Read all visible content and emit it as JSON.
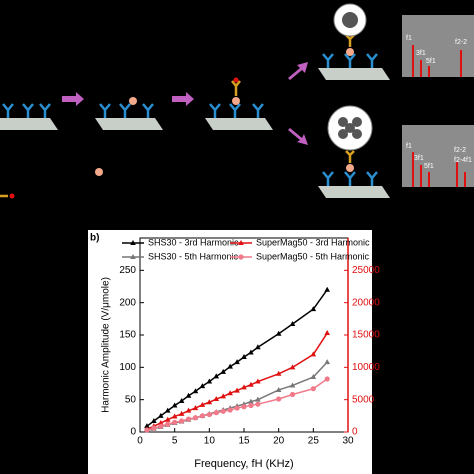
{
  "schematic": {
    "spectra": [
      {
        "labels": [
          "f1",
          "3f1",
          "5f1",
          "f2-2"
        ]
      },
      {
        "labels": [
          "f1",
          "3f1",
          "5f1",
          "f2-2",
          "f2-4f1"
        ]
      }
    ]
  },
  "chart_data": {
    "type": "line",
    "panel_label": "b)",
    "x_label": "Frequency, fH (KHz)",
    "y_label": "Harmonic Amplitude (V/μmole)",
    "x": [
      1,
      2,
      3,
      4,
      5,
      6,
      7,
      8,
      9,
      10,
      11,
      12,
      13,
      14,
      15,
      16,
      17,
      20,
      22,
      25,
      27
    ],
    "series": [
      {
        "name": "SHS30 - 3rd Harmonic",
        "color": "#000000",
        "marker": "triangle",
        "axis": "y",
        "values": [
          9,
          17,
          25,
          33,
          41,
          48,
          56,
          63,
          71,
          78,
          86,
          93,
          101,
          108,
          116,
          123,
          131,
          152,
          167,
          190,
          220
        ]
      },
      {
        "name": "SuperMag50 - 3rd Harmonic",
        "color": "#e01010",
        "marker": "triangle",
        "axis": "y2",
        "values": [
          400,
          900,
          1400,
          1900,
          2400,
          2800,
          3300,
          3700,
          4200,
          4600,
          5100,
          5500,
          6000,
          6400,
          6900,
          7300,
          7800,
          9000,
          10000,
          12000,
          15300
        ]
      },
      {
        "name": "SHS30 - 5th Harmonic",
        "color": "#777777",
        "marker": "triangle",
        "axis": "y",
        "values": [
          2,
          5,
          8,
          11,
          14,
          16,
          19,
          22,
          25,
          28,
          31,
          34,
          37,
          40,
          43,
          47,
          50,
          65,
          72,
          85,
          108
        ]
      },
      {
        "name": "SuperMag50 - 5th Harmonic",
        "color": "#f07a8a",
        "marker": "circle",
        "axis": "y2",
        "values": [
          300,
          600,
          900,
          1200,
          1500,
          1700,
          2000,
          2200,
          2500,
          2700,
          3000,
          3200,
          3400,
          3700,
          3900,
          4100,
          4300,
          5100,
          5800,
          6700,
          8200
        ]
      }
    ],
    "xlim": [
      0,
      30
    ],
    "xticks": [
      0,
      5,
      10,
      15,
      20,
      25,
      30
    ],
    "ylim": [
      0,
      300
    ],
    "yticks": [
      0,
      50,
      100,
      150,
      200,
      250
    ],
    "y2lim": [
      0,
      30000
    ],
    "y2ticks": [
      0,
      5000,
      10000,
      15000,
      20000,
      25000
    ],
    "y2color": "#e01010"
  }
}
